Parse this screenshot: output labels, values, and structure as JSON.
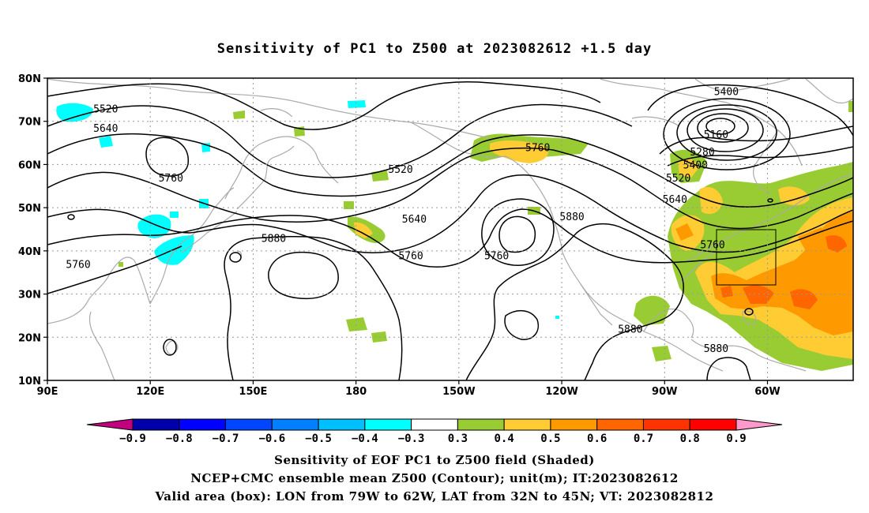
{
  "title": "Sensitivity of PC1 to Z500 at 2023082612 +1.5 day",
  "lat_labels": [
    "80N",
    "70N",
    "60N",
    "50N",
    "40N",
    "30N",
    "20N",
    "10N"
  ],
  "lon_labels": [
    "90E",
    "120E",
    "150E",
    "180",
    "150W",
    "120W",
    "90W",
    "60W"
  ],
  "contour_labels": [
    {
      "text": "5520",
      "lon": 107,
      "lat": 73
    },
    {
      "text": "5640",
      "lon": 107,
      "lat": 68.5
    },
    {
      "text": "5760",
      "lon": 126,
      "lat": 57
    },
    {
      "text": "5760",
      "lon": 99,
      "lat": 37
    },
    {
      "text": "5880",
      "lon": 156,
      "lat": 43
    },
    {
      "text": "5520",
      "lon": -167,
      "lat": 59
    },
    {
      "text": "5640",
      "lon": -163,
      "lat": 47.5
    },
    {
      "text": "5760",
      "lon": -164,
      "lat": 39
    },
    {
      "text": "5760",
      "lon": -139,
      "lat": 39
    },
    {
      "text": "5760",
      "lon": -127,
      "lat": 64
    },
    {
      "text": "5880",
      "lon": -117,
      "lat": 48
    },
    {
      "text": "5880",
      "lon": -100,
      "lat": 22
    },
    {
      "text": "5880",
      "lon": -75,
      "lat": 17.5
    },
    {
      "text": "5400",
      "lon": -72,
      "lat": 77
    },
    {
      "text": "5160",
      "lon": -75,
      "lat": 67
    },
    {
      "text": "5280",
      "lon": -79,
      "lat": 63
    },
    {
      "text": "5400",
      "lon": -81,
      "lat": 60
    },
    {
      "text": "5520",
      "lon": -86,
      "lat": 57
    },
    {
      "text": "5640",
      "lon": -87,
      "lat": 52
    },
    {
      "text": "5760",
      "lon": -76,
      "lat": 41.5
    }
  ],
  "colorbar": {
    "colors": [
      "#c2007f",
      "#0000aa",
      "#0000ff",
      "#0045ff",
      "#0080ff",
      "#00bfff",
      "#00ffff",
      "#ffffff",
      "#99cc33",
      "#ffcc33",
      "#ff9900",
      "#ff6600",
      "#ff3300",
      "#ff0000",
      "#ff99cc"
    ],
    "labels": [
      "−0.9",
      "−0.8",
      "−0.7",
      "−0.6",
      "−0.5",
      "−0.4",
      "−0.3",
      "0.3",
      "0.4",
      "0.5",
      "0.6",
      "0.7",
      "0.8",
      "0.9"
    ]
  },
  "valid_box": {
    "lon_from": -79,
    "lon_to": -62,
    "lat_from": 32,
    "lat_to": 45
  },
  "captions": [
    "Sensitivity of EOF PC1 to Z500 field (Shaded)",
    "NCEP+CMC ensemble mean Z500 (Contour); unit(m); IT:2023082612",
    "Valid area (box): LON from 79W to 62W, LAT from 32N to 45N; VT: 2023082812"
  ]
}
